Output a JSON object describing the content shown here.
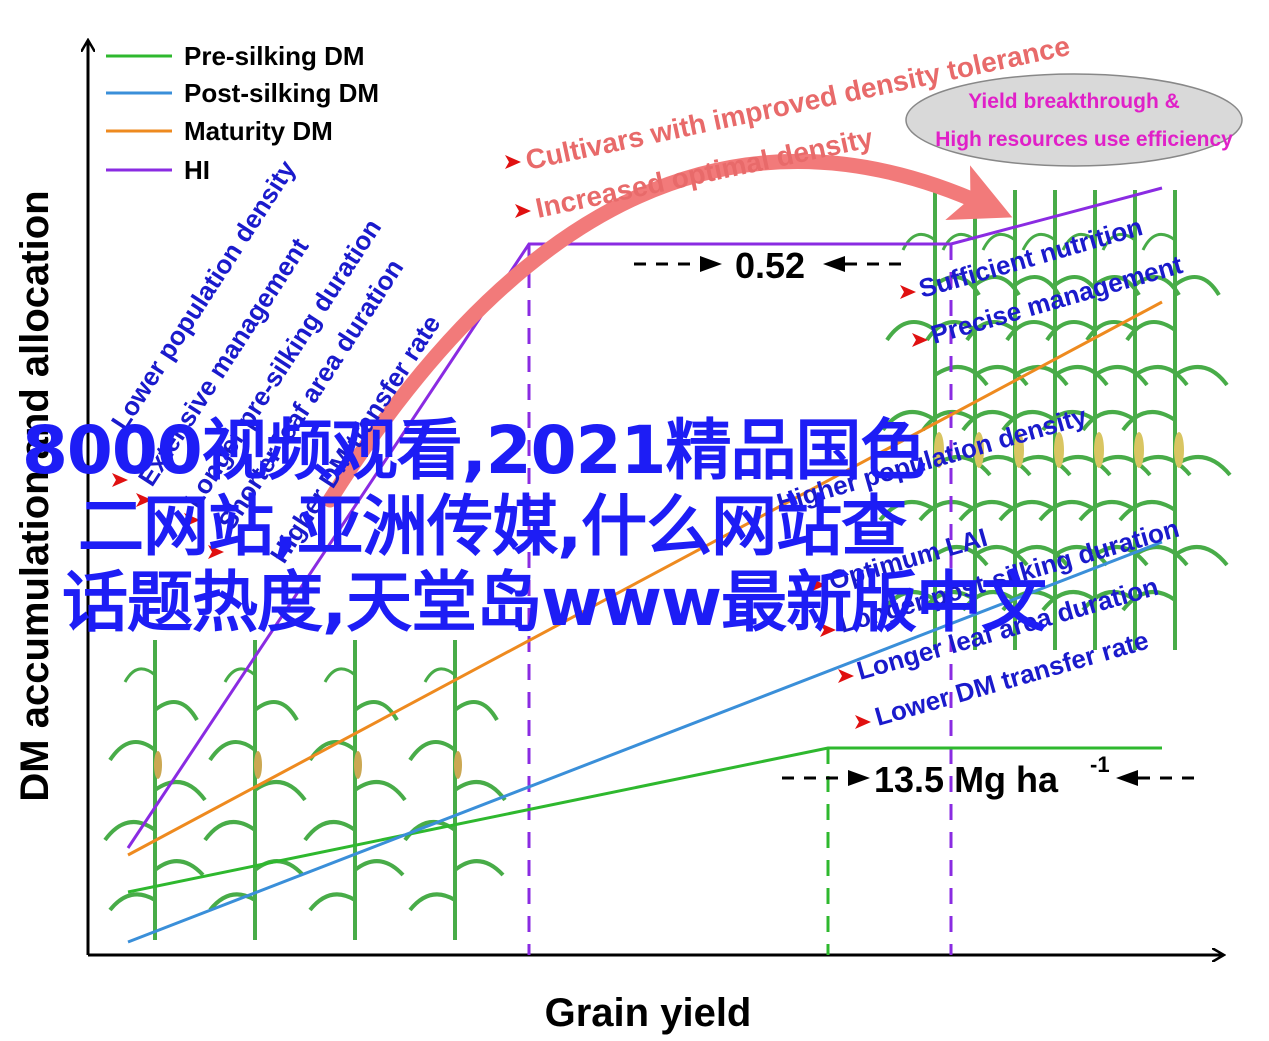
{
  "legend": [
    {
      "label": "Pre-silking DM",
      "color": "#2eb82e"
    },
    {
      "label": "Post-silking DM",
      "color": "#3a8fd9"
    },
    {
      "label": "Maturity DM",
      "color": "#ee8a1f"
    },
    {
      "label": "HI",
      "color": "#8a2be2"
    }
  ],
  "axes": {
    "ylabel": "DM accumulation and allocation",
    "xlabel": "Grain yield"
  },
  "left_factors": [
    "Lower population density",
    "Extensive management",
    "Longer pre-silking duration",
    "Shorter leaf area duration",
    "Higher DM transfer rate"
  ],
  "top_arrow": {
    "line1": "Cultivars with improved density tolerance",
    "line2": "Increased optimal density"
  },
  "ellipse": {
    "line1": "Yield breakthrough &",
    "line2": "High resources use efficiency"
  },
  "hi_gap_label": "0.52",
  "yield_gap_label": "13.5 Mg ha",
  "yield_gap_sup": "-1",
  "right_top_factors": [
    "Sufficient nutrition",
    "Precise management"
  ],
  "right_factors": [
    "Higher population density",
    "Optimum LAI",
    "Longer post-silking duration",
    "Longer leaf area duration",
    "Lower DM transfer rate"
  ],
  "watermark": [
    "8000视频观看,2021精品国色",
    "二网站,亚洲传媒,什么网站查",
    "话题热度,天堂岛www最新版中文"
  ],
  "colors": {
    "axis": "#000000",
    "factor_text": "#1a1acc",
    "top_text": "#e86a6a",
    "ellipse_fill": "#d9d9d9",
    "ellipse_text": "#e020c8",
    "arrow_marker": "#e01010",
    "plant": "#3fa83f"
  }
}
